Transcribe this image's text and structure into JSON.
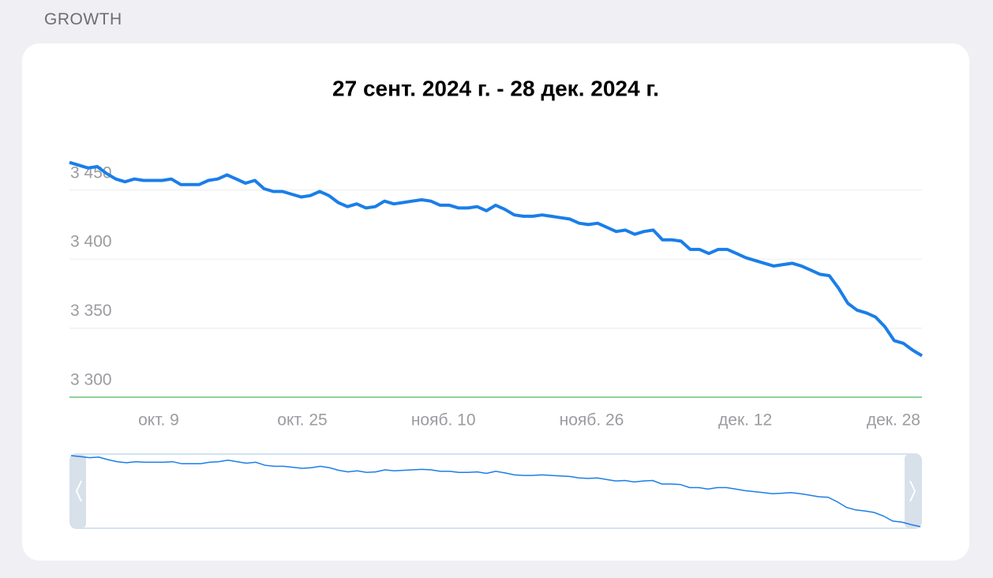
{
  "section_title": "GROWTH",
  "chart_data": {
    "type": "line",
    "title": "27 сент. 2024 г. - 28 дек. 2024 г.",
    "x": [
      "2024-09-27",
      "2024-09-28",
      "2024-09-29",
      "2024-09-30",
      "2024-10-01",
      "2024-10-02",
      "2024-10-03",
      "2024-10-04",
      "2024-10-05",
      "2024-10-06",
      "2024-10-07",
      "2024-10-08",
      "2024-10-09",
      "2024-10-10",
      "2024-10-11",
      "2024-10-12",
      "2024-10-13",
      "2024-10-14",
      "2024-10-15",
      "2024-10-16",
      "2024-10-17",
      "2024-10-18",
      "2024-10-19",
      "2024-10-20",
      "2024-10-21",
      "2024-10-22",
      "2024-10-23",
      "2024-10-24",
      "2024-10-25",
      "2024-10-26",
      "2024-10-27",
      "2024-10-28",
      "2024-10-29",
      "2024-10-30",
      "2024-10-31",
      "2024-11-01",
      "2024-11-02",
      "2024-11-03",
      "2024-11-04",
      "2024-11-05",
      "2024-11-06",
      "2024-11-07",
      "2024-11-08",
      "2024-11-09",
      "2024-11-10",
      "2024-11-11",
      "2024-11-12",
      "2024-11-13",
      "2024-11-14",
      "2024-11-15",
      "2024-11-16",
      "2024-11-17",
      "2024-11-18",
      "2024-11-19",
      "2024-11-20",
      "2024-11-21",
      "2024-11-22",
      "2024-11-23",
      "2024-11-24",
      "2024-11-25",
      "2024-11-26",
      "2024-11-27",
      "2024-11-28",
      "2024-11-29",
      "2024-11-30",
      "2024-12-01",
      "2024-12-02",
      "2024-12-03",
      "2024-12-04",
      "2024-12-05",
      "2024-12-06",
      "2024-12-07",
      "2024-12-08",
      "2024-12-09",
      "2024-12-10",
      "2024-12-11",
      "2024-12-12",
      "2024-12-13",
      "2024-12-14",
      "2024-12-15",
      "2024-12-16",
      "2024-12-17",
      "2024-12-18",
      "2024-12-19",
      "2024-12-20",
      "2024-12-21",
      "2024-12-22",
      "2024-12-23",
      "2024-12-24",
      "2024-12-25",
      "2024-12-26",
      "2024-12-27",
      "2024-12-28"
    ],
    "values": [
      3470,
      3468,
      3466,
      3467,
      3462,
      3458,
      3456,
      3458,
      3457,
      3457,
      3457,
      3458,
      3454,
      3454,
      3454,
      3457,
      3458,
      3461,
      3458,
      3455,
      3457,
      3451,
      3449,
      3449,
      3447,
      3445,
      3446,
      3449,
      3446,
      3441,
      3438,
      3440,
      3437,
      3438,
      3442,
      3440,
      3441,
      3442,
      3443,
      3442,
      3439,
      3439,
      3437,
      3437,
      3438,
      3435,
      3439,
      3436,
      3432,
      3431,
      3431,
      3432,
      3431,
      3430,
      3429,
      3426,
      3425,
      3426,
      3423,
      3420,
      3421,
      3418,
      3420,
      3421,
      3414,
      3414,
      3413,
      3407,
      3407,
      3404,
      3407,
      3407,
      3404,
      3401,
      3399,
      3397,
      3395,
      3396,
      3397,
      3395,
      3392,
      3389,
      3388,
      3379,
      3368,
      3363,
      3361,
      3358,
      3351,
      3341,
      3339,
      3334,
      3330
    ],
    "color": "#1a7ee8",
    "xlim": [
      "2024-09-27",
      "2024-12-28"
    ],
    "xticks": [
      {
        "value": "2024-10-09",
        "label": "окт. 9"
      },
      {
        "value": "2024-10-25",
        "label": "окт. 25"
      },
      {
        "value": "2024-11-10",
        "label": "нояб. 10"
      },
      {
        "value": "2024-11-26",
        "label": "нояб. 26"
      },
      {
        "value": "2024-12-12",
        "label": "дек. 12"
      },
      {
        "value": "2024-12-28",
        "label": "дек. 28"
      }
    ],
    "ylim": [
      3300,
      3475
    ],
    "yticks": [
      {
        "value": 3300,
        "label": "3 300"
      },
      {
        "value": 3350,
        "label": "3 350"
      },
      {
        "value": 3400,
        "label": "3 400"
      },
      {
        "value": 3450,
        "label": "3 450"
      }
    ],
    "grid": true,
    "baseline_color": "#8fd19a"
  }
}
